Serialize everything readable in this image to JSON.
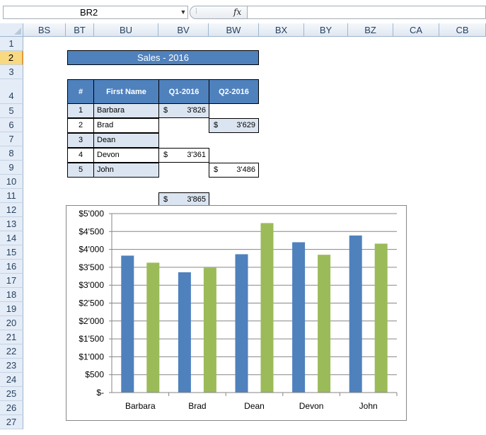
{
  "formula_bar": {
    "name_box": "BR2",
    "dropdown_glyph": "▼",
    "grip_glyph": "⁞",
    "fx_label": "fx",
    "formula": ""
  },
  "columns": [
    "BS",
    "BT",
    "BU",
    "BV",
    "BW",
    "BX",
    "BY",
    "BZ",
    "CA",
    "CB"
  ],
  "rows": [
    "1",
    "2",
    "3",
    "4",
    "5",
    "6",
    "7",
    "8",
    "9",
    "10",
    "11",
    "12",
    "13",
    "14",
    "15",
    "16",
    "17",
    "18",
    "19",
    "20",
    "21",
    "22",
    "23",
    "24",
    "25",
    "26",
    "27"
  ],
  "selected_row": "2",
  "sheet": {
    "title": "Sales - 2016",
    "headers": [
      "#",
      "First Name",
      "Q1-2016",
      "Q2-2016"
    ],
    "currency_symbol": "$",
    "records": [
      {
        "num": "1",
        "name": "Barbara",
        "q1": "3'826",
        "q2": "3'629"
      },
      {
        "num": "2",
        "name": "Brad",
        "q1": "3'361",
        "q2": "3'486"
      },
      {
        "num": "3",
        "name": "Dean",
        "q1": "3'865",
        "q2": "4'735"
      },
      {
        "num": "4",
        "name": "Devon",
        "q1": "4'200",
        "q2": "3'850"
      },
      {
        "num": "5",
        "name": "John",
        "q1": "4'388",
        "q2": "4'161"
      }
    ]
  },
  "colors": {
    "q1": "#4f81bd",
    "q2": "#9bbb59",
    "header_fill": "#4f81bd",
    "band_fill": "#dbe5f1",
    "selected_row_header": "#f8d982"
  },
  "chart_data": {
    "type": "bar",
    "categories": [
      "Barbara",
      "Brad",
      "Dean",
      "Devon",
      "John"
    ],
    "series": [
      {
        "values": [
          3826,
          3361,
          3865,
          4200,
          4388
        ]
      },
      {
        "values": [
          3629,
          3486,
          4735,
          3850,
          4161
        ]
      }
    ],
    "ylim": [
      0,
      5000
    ],
    "yticks": [
      0,
      500,
      1000,
      1500,
      2000,
      2500,
      3000,
      3500,
      4000,
      4500,
      5000
    ],
    "ytick_labels": [
      "$-",
      "$500",
      "$1'000",
      "$1'500",
      "$2'000",
      "$2'500",
      "$3'000",
      "$3'500",
      "$4'000",
      "$4'500",
      "$5'000"
    ],
    "grid": true,
    "legend": "none"
  }
}
